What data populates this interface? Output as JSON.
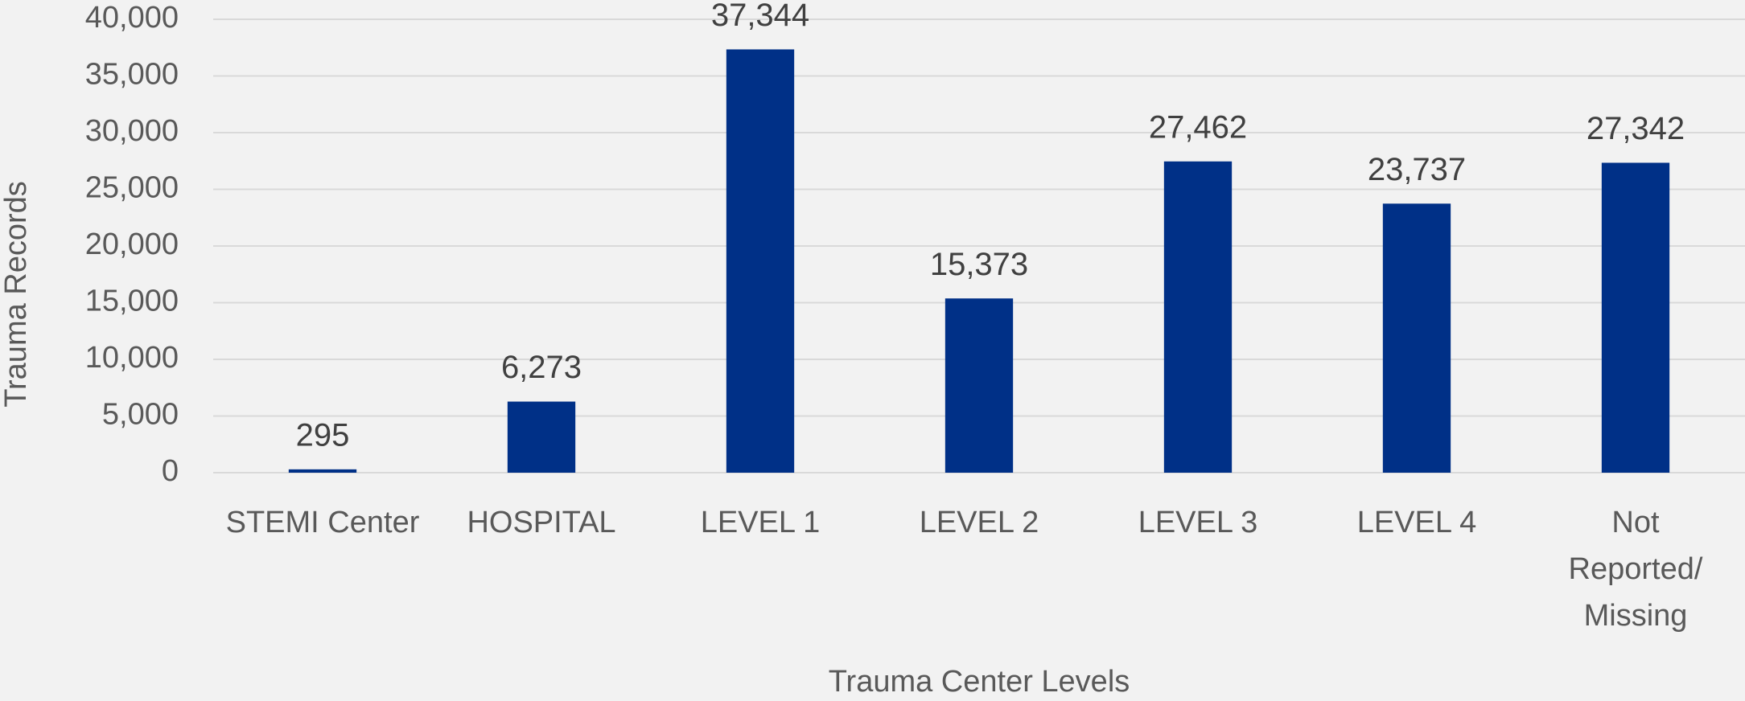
{
  "chart_data": {
    "type": "bar",
    "x_label": "Trauma Center Levels",
    "y_label": "Trauma Records",
    "categories": [
      "STEMI Center",
      "HOSPITAL",
      "LEVEL 1",
      "LEVEL 2",
      "LEVEL 3",
      "LEVEL 4",
      "Not\nReported/\nMissing"
    ],
    "values": [
      295,
      6273,
      37344,
      15373,
      27462,
      23737,
      27342
    ],
    "value_labels": [
      "295",
      "6,273",
      "37,344",
      "15,373",
      "27,462",
      "23,737",
      "27,342"
    ],
    "color": "#003087",
    "ylim": [
      0,
      40000
    ],
    "yticks": [
      0,
      {
        "value": 5000,
        "label": "5,000"
      },
      {
        "value": 10000,
        "label": "10,000"
      },
      {
        "value": 15000,
        "label": "15,000"
      },
      {
        "value": 20000,
        "label": "20,000"
      },
      {
        "value": 25000,
        "label": "25,000"
      },
      {
        "value": 30000,
        "label": "30,000"
      },
      {
        "value": 35000,
        "label": "35,000"
      },
      {
        "value": 40000,
        "label": "40,000"
      }
    ],
    "grid": true
  }
}
